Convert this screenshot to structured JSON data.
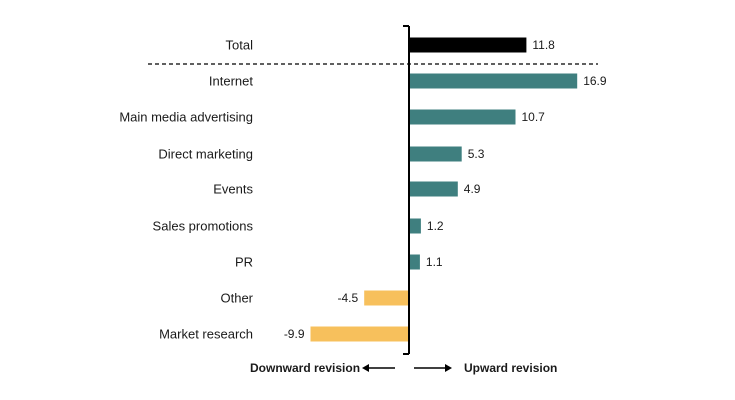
{
  "chart_data": {
    "type": "bar",
    "orientation": "horizontal",
    "categories": [
      "Total",
      "Internet",
      "Main media advertising",
      "Direct marketing",
      "Events",
      "Sales promotions",
      "PR",
      "Other",
      "Market research"
    ],
    "values": [
      11.8,
      16.9,
      10.7,
      5.3,
      4.9,
      1.2,
      1.1,
      -4.5,
      -9.9
    ],
    "value_labels": [
      "11.8",
      "16.9",
      "10.7",
      "5.3",
      "4.9",
      "1.2",
      "1.1",
      "-4.5",
      "-9.9"
    ],
    "title": "",
    "xlabel": "",
    "ylabel": "",
    "xlim": [
      -10.5,
      17.5
    ],
    "grid": false,
    "legend": "none",
    "colors": {
      "total": "#000000",
      "positive": "#3f7f7f",
      "negative": "#f7c05c",
      "axis": "#000000"
    },
    "direction_labels": {
      "downward": "Downward revision",
      "upward": "Upward revision"
    }
  }
}
